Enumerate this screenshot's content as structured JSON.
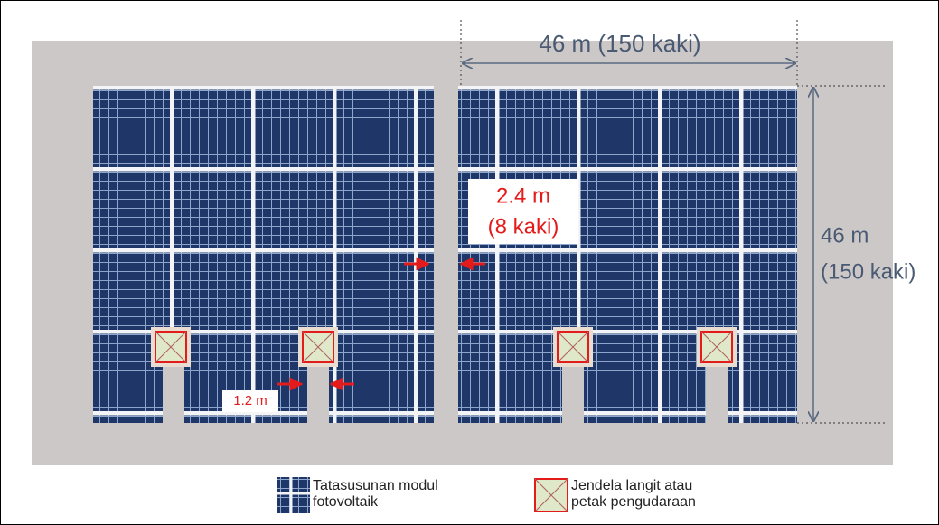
{
  "dimensions": {
    "array_width": "46 m (150 kaki)",
    "array_height_value": "46 m",
    "array_height_unit": "(150 kaki)",
    "row_gap_value": "2.4 m",
    "row_gap_unit": "(8 kaki)",
    "aisle_width": "1.2 m"
  },
  "legend": {
    "pv_array": [
      "Tatasusunan modul",
      "fotovoltaik"
    ],
    "skylight": [
      "Jendela langit atau",
      "petak pengudaraan"
    ]
  }
}
